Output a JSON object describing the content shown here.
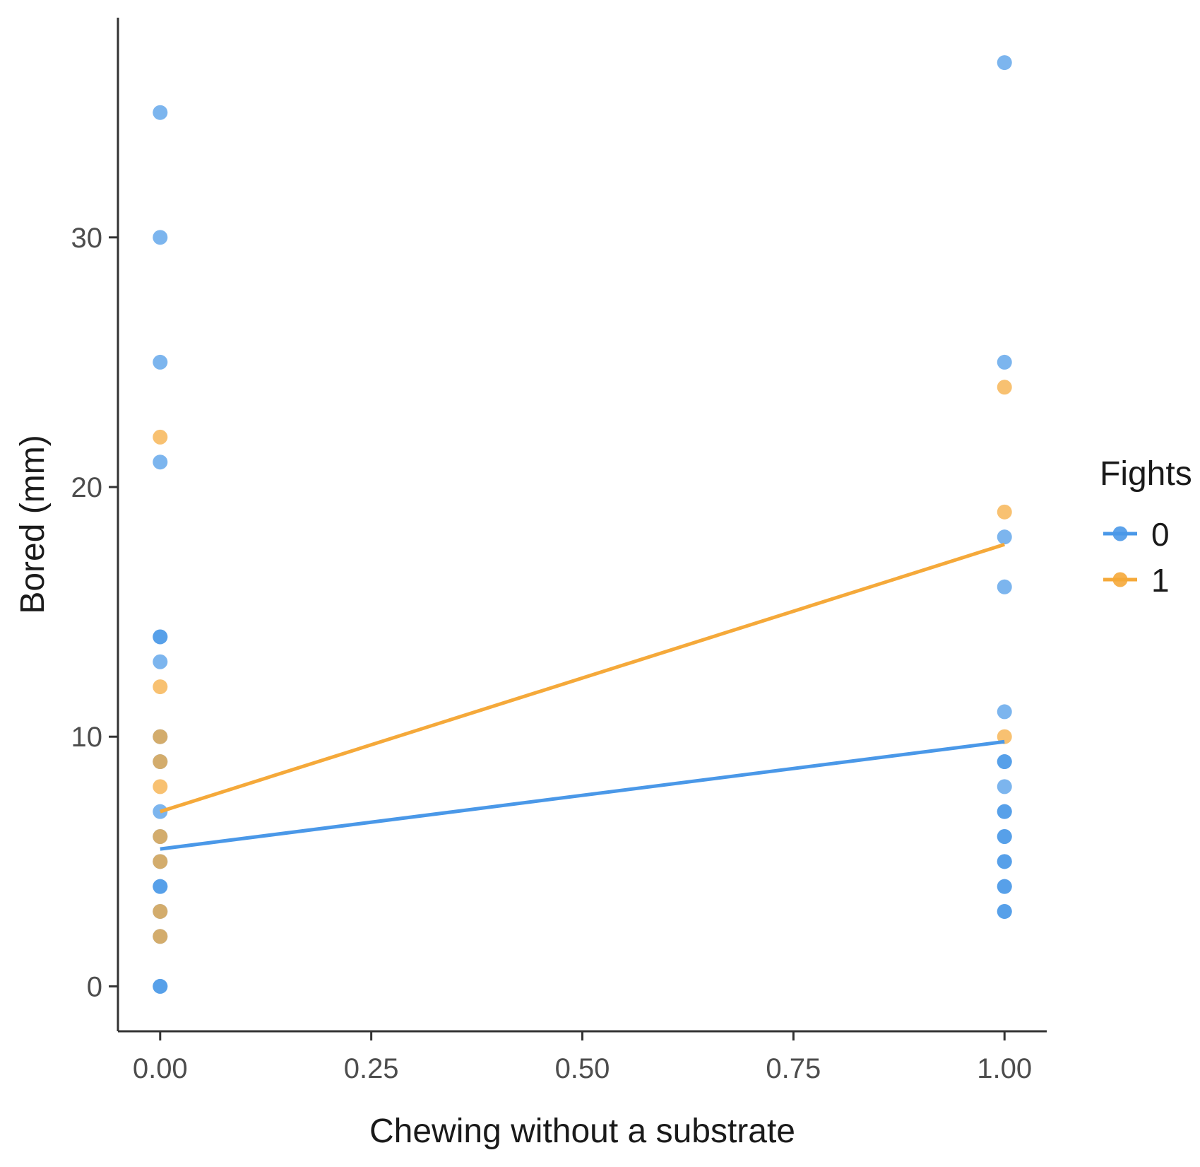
{
  "chart_data": {
    "type": "scatter",
    "title": "",
    "xlabel": "Chewing without a substrate",
    "ylabel": "Bored (mm)",
    "xlim": [
      -0.05,
      1.05
    ],
    "ylim": [
      -1.8,
      38.8
    ],
    "x_ticks": [
      0,
      0.25,
      0.5,
      0.75,
      1
    ],
    "x_tick_labels": [
      "0.00",
      "0.25",
      "0.50",
      "0.75",
      "1.00"
    ],
    "y_ticks": [
      0,
      10,
      20,
      30
    ],
    "y_tick_labels": [
      "0",
      "10",
      "20",
      "30"
    ],
    "legend": {
      "title": "Fights",
      "position": "right",
      "entries": [
        "0",
        "1"
      ]
    },
    "series": [
      {
        "name": "0",
        "color": "#4a98e8",
        "points": [
          {
            "x": 0,
            "y": 35
          },
          {
            "x": 0,
            "y": 30
          },
          {
            "x": 0,
            "y": 25
          },
          {
            "x": 0,
            "y": 21
          },
          {
            "x": 0,
            "y": 14
          },
          {
            "x": 0,
            "y": 14
          },
          {
            "x": 0,
            "y": 13
          },
          {
            "x": 0,
            "y": 10
          },
          {
            "x": 0,
            "y": 9
          },
          {
            "x": 0,
            "y": 7
          },
          {
            "x": 0,
            "y": 6
          },
          {
            "x": 0,
            "y": 5
          },
          {
            "x": 0,
            "y": 4
          },
          {
            "x": 0,
            "y": 4
          },
          {
            "x": 0,
            "y": 3
          },
          {
            "x": 0,
            "y": 2
          },
          {
            "x": 0,
            "y": 0
          },
          {
            "x": 0,
            "y": 0
          },
          {
            "x": 1,
            "y": 37
          },
          {
            "x": 1,
            "y": 25
          },
          {
            "x": 1,
            "y": 18
          },
          {
            "x": 1,
            "y": 16
          },
          {
            "x": 1,
            "y": 11
          },
          {
            "x": 1,
            "y": 9
          },
          {
            "x": 1,
            "y": 9
          },
          {
            "x": 1,
            "y": 8
          },
          {
            "x": 1,
            "y": 7
          },
          {
            "x": 1,
            "y": 7
          },
          {
            "x": 1,
            "y": 6
          },
          {
            "x": 1,
            "y": 6
          },
          {
            "x": 1,
            "y": 5
          },
          {
            "x": 1,
            "y": 5
          },
          {
            "x": 1,
            "y": 4
          },
          {
            "x": 1,
            "y": 4
          },
          {
            "x": 1,
            "y": 3
          },
          {
            "x": 1,
            "y": 3
          }
        ],
        "fit_line": {
          "x": [
            0,
            1
          ],
          "y": [
            5.5,
            9.8
          ]
        }
      },
      {
        "name": "1",
        "color": "#f5a93a",
        "points": [
          {
            "x": 0,
            "y": 22
          },
          {
            "x": 0,
            "y": 12
          },
          {
            "x": 0,
            "y": 10
          },
          {
            "x": 0,
            "y": 9
          },
          {
            "x": 0,
            "y": 8
          },
          {
            "x": 0,
            "y": 6
          },
          {
            "x": 0,
            "y": 5
          },
          {
            "x": 0,
            "y": 3
          },
          {
            "x": 0,
            "y": 2
          },
          {
            "x": 1,
            "y": 24
          },
          {
            "x": 1,
            "y": 19
          },
          {
            "x": 1,
            "y": 10
          }
        ],
        "fit_line": {
          "x": [
            0,
            1
          ],
          "y": [
            7,
            17.7
          ]
        }
      }
    ]
  }
}
